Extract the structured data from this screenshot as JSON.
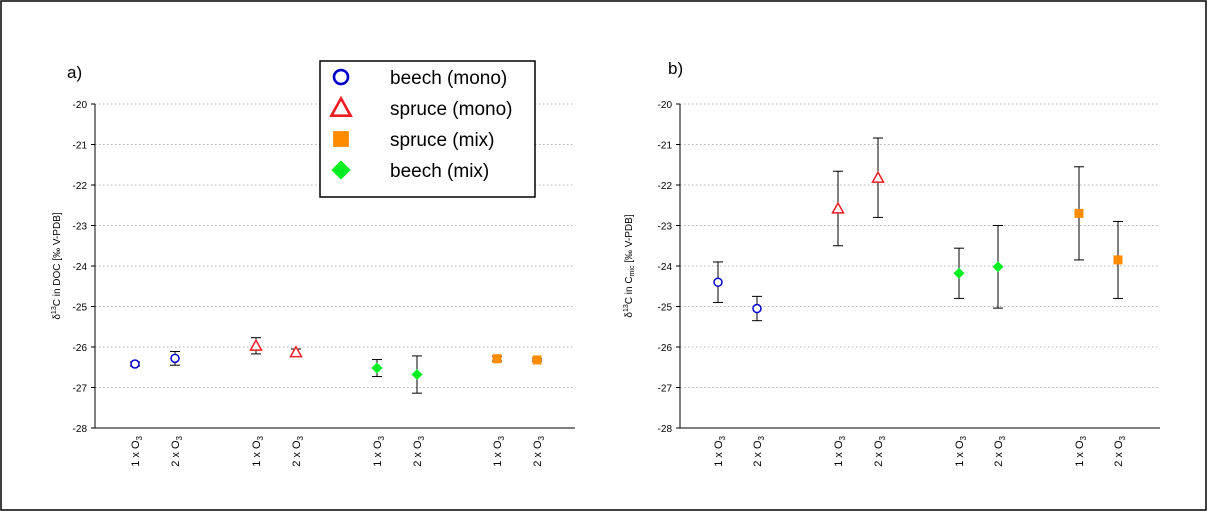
{
  "colors": {
    "beech_mono": "#0000cc",
    "spruce_mono": "#ee1c24",
    "spruce_mix": "#ff8c00",
    "beech_mix": "#00ee22",
    "grid": "#9a9a9a"
  },
  "legend": {
    "items": [
      {
        "label": "beech (mono)",
        "marker": "circle-open",
        "color": "#0000cc"
      },
      {
        "label": "spruce (mono)",
        "marker": "triangle-open",
        "color": "#ee1c24"
      },
      {
        "label": "spruce (mix)",
        "marker": "square-filled",
        "color": "#ff8c00"
      },
      {
        "label": "beech (mix)",
        "marker": "diamond-filled",
        "color": "#00ee22"
      }
    ]
  },
  "chart_data": [
    {
      "type": "scatter",
      "panel_label": "a)",
      "ylabel": "δ13C in DOC [‰ V-PDB]",
      "ylabel_parts": {
        "delta": "δ",
        "sup": "13",
        "main": "C in DOC [‰ V-PDB]"
      },
      "ylim": [
        -28,
        -20
      ],
      "yticks": [
        -20,
        -21,
        -22,
        -23,
        -24,
        -25,
        -26,
        -27,
        -28
      ],
      "grid": true,
      "legend_position": "top-center",
      "categories": [
        {
          "label": "1 x O3",
          "base": "1 x O",
          "sub": "3"
        },
        {
          "label": "2 x O3",
          "base": "2 x O",
          "sub": "3"
        },
        {
          "label": "1 x O3",
          "base": "1 x O",
          "sub": "3"
        },
        {
          "label": "2 x O3",
          "base": "2 x O",
          "sub": "3"
        },
        {
          "label": "1 x O3",
          "base": "1 x O",
          "sub": "3"
        },
        {
          "label": "2 x O3",
          "base": "2 x O",
          "sub": "3"
        },
        {
          "label": "1 x O3",
          "base": "1 x O",
          "sub": "3"
        },
        {
          "label": "2 x O3",
          "base": "2 x O",
          "sub": "3"
        }
      ],
      "series": [
        {
          "name": "beech (mono)",
          "marker": "circle-open",
          "color": "#0000cc",
          "points": [
            {
              "cat": 0,
              "y": -26.42,
              "err": 0.05
            },
            {
              "cat": 1,
              "y": -26.28,
              "err": 0.17
            }
          ]
        },
        {
          "name": "spruce (mono)",
          "marker": "triangle-open",
          "color": "#ee1c24",
          "points": [
            {
              "cat": 2,
              "y": -25.97,
              "err": 0.2
            },
            {
              "cat": 3,
              "y": -26.13,
              "err": 0.08
            }
          ]
        },
        {
          "name": "beech (mix)",
          "marker": "diamond-filled",
          "color": "#00ee22",
          "points": [
            {
              "cat": 4,
              "y": -26.52,
              "err": 0.21
            },
            {
              "cat": 5,
              "y": -26.68,
              "err": 0.46
            }
          ]
        },
        {
          "name": "spruce (mix)",
          "marker": "square-filled",
          "color": "#ff8c00",
          "points": [
            {
              "cat": 6,
              "y": -26.29,
              "err": 0.06
            },
            {
              "cat": 7,
              "y": -26.32,
              "err": 0.03
            }
          ]
        }
      ]
    },
    {
      "type": "scatter",
      "panel_label": "b)",
      "ylabel": "δ13C in Cmic [‰ V-PDB]",
      "ylabel_parts": {
        "delta": "δ",
        "sup": "13",
        "pre": "C in C",
        "sub": "mic",
        "post": " [‰ V-PDB]"
      },
      "ylim": [
        -28,
        -20
      ],
      "yticks": [
        -20,
        -21,
        -22,
        -23,
        -24,
        -25,
        -26,
        -27,
        -28
      ],
      "grid": true,
      "categories": [
        {
          "label": "1 x O3",
          "base": "1 x O",
          "sub": "3"
        },
        {
          "label": "2 x O3",
          "base": "2 x O",
          "sub": "3"
        },
        {
          "label": "1 x O3",
          "base": "1 x O",
          "sub": "3"
        },
        {
          "label": "2 x O3",
          "base": "2 x O",
          "sub": "3"
        },
        {
          "label": "1 x O3",
          "base": "1 x O",
          "sub": "3"
        },
        {
          "label": "2 x O3",
          "base": "2 x O",
          "sub": "3"
        },
        {
          "label": "1 x O3",
          "base": "1 x O",
          "sub": "3"
        },
        {
          "label": "2 x O3",
          "base": "2 x O",
          "sub": "3"
        }
      ],
      "series": [
        {
          "name": "beech (mono)",
          "marker": "circle-open",
          "color": "#0000cc",
          "points": [
            {
              "cat": 0,
              "y": -24.4,
              "err": 0.5
            },
            {
              "cat": 1,
              "y": -25.05,
              "err": 0.3
            }
          ]
        },
        {
          "name": "spruce (mono)",
          "marker": "triangle-open",
          "color": "#ee1c24",
          "points": [
            {
              "cat": 2,
              "y": -22.58,
              "err": 0.92
            },
            {
              "cat": 3,
              "y": -21.82,
              "err": 0.98
            }
          ]
        },
        {
          "name": "beech (mix)",
          "marker": "diamond-filled",
          "color": "#00ee22",
          "points": [
            {
              "cat": 4,
              "y": -24.18,
              "err": 0.62
            },
            {
              "cat": 5,
              "y": -24.02,
              "err": 1.02
            }
          ]
        },
        {
          "name": "spruce (mix)",
          "marker": "square-filled",
          "color": "#ff8c00",
          "points": [
            {
              "cat": 6,
              "y": -22.7,
              "err": 1.15
            },
            {
              "cat": 7,
              "y": -23.85,
              "err": 0.95
            }
          ]
        }
      ]
    }
  ]
}
